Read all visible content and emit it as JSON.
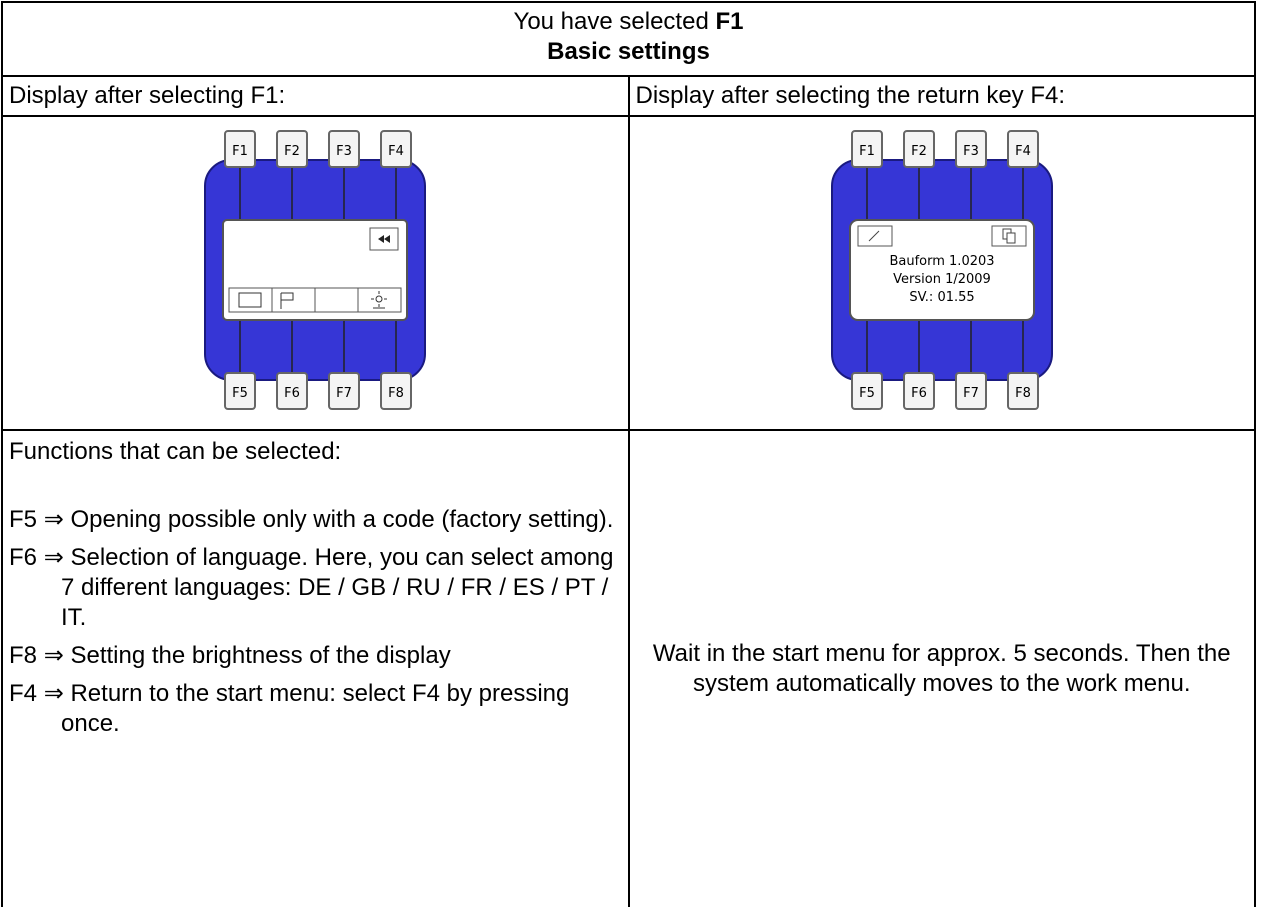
{
  "header": {
    "prefix": "You have selected",
    "key": "F1",
    "title": "Basic settings"
  },
  "left": {
    "heading": "Display after selecting F1:"
  },
  "right": {
    "heading": "Display after selecting the return key F4:",
    "display_lines": [
      "Bauform 1.0203",
      "Version 1/2009",
      "SV.: 01.55"
    ],
    "note": "Wait in the start menu for approx. 5 sec­onds. Then the system automatically moves to the work menu."
  },
  "keys": [
    "F1",
    "F2",
    "F3",
    "F4",
    "F5",
    "F6",
    "F7",
    "F8"
  ],
  "functions": {
    "intro": "Functions that can be selected:",
    "items": [
      {
        "key": "F5",
        "arrow": "⇒",
        "text": "Opening possible only with a code (factory setting)."
      },
      {
        "key": "F6",
        "arrow": "⇒",
        "text": "Selection of language. Here, you can select among 7 different lan­guages: DE / GB / RU / FR / ES / PT / IT."
      },
      {
        "key": "F8",
        "arrow": "⇒",
        "text": "Setting the brightness of the display"
      },
      {
        "key": "F4",
        "arrow": "⇒",
        "text": "Return to the start menu:  select F4 by pressing once."
      }
    ]
  }
}
